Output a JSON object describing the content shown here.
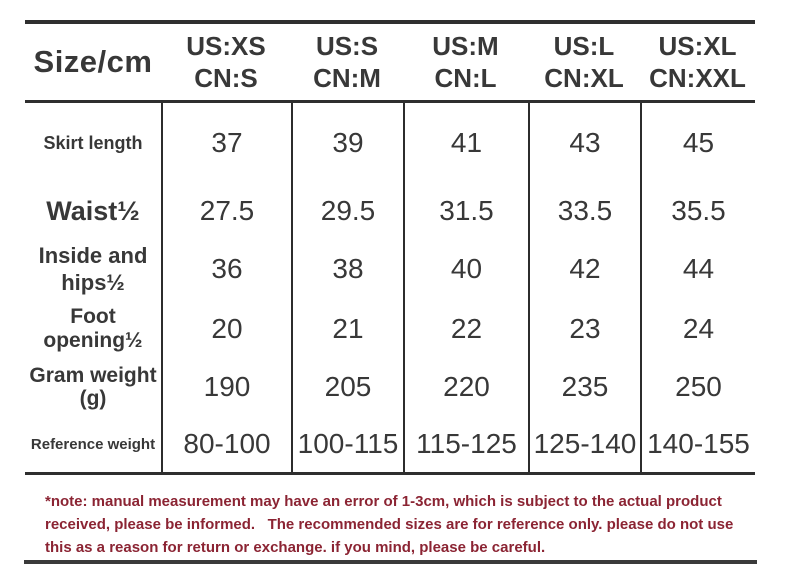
{
  "chart_data": {
    "type": "table",
    "title": "Size/cm clothing size chart",
    "corner_label": "Size/cm",
    "size_columns": [
      {
        "us": "US:XS",
        "cn": "CN:S"
      },
      {
        "us": "US:S",
        "cn": "CN:M"
      },
      {
        "us": "US:M",
        "cn": "CN:L"
      },
      {
        "us": "US:L",
        "cn": "CN:XL"
      },
      {
        "us": "US:XL",
        "cn": "CN:XXL"
      }
    ],
    "rows": [
      {
        "label": "Skirt length",
        "values": [
          37,
          39,
          41,
          43,
          45
        ]
      },
      {
        "label": "Waist½",
        "values": [
          27.5,
          29.5,
          31.5,
          33.5,
          35.5
        ]
      },
      {
        "label": "Inside and hips½",
        "values": [
          36,
          38,
          40,
          42,
          44
        ]
      },
      {
        "label": "Foot opening½",
        "values": [
          20,
          21,
          22,
          23,
          24
        ]
      },
      {
        "label": "Gram weight (g)",
        "values": [
          190,
          205,
          220,
          235,
          250
        ]
      },
      {
        "label": "Reference weight",
        "values": [
          "80-100",
          "100-115",
          "115-125",
          "125-140",
          "140-155"
        ]
      }
    ],
    "footnote": "*note: manual measurement may have an error of 1-3cm, which is subject to the actual product received, please be informed.   The recommended sizes are for reference only. please do not use this as a reason for return or exchange. if you mind, please be careful."
  },
  "colors": {
    "text": "#383838",
    "rule": "#2f2f2f",
    "note_text": "#8b2433",
    "background": "#ffffff"
  }
}
